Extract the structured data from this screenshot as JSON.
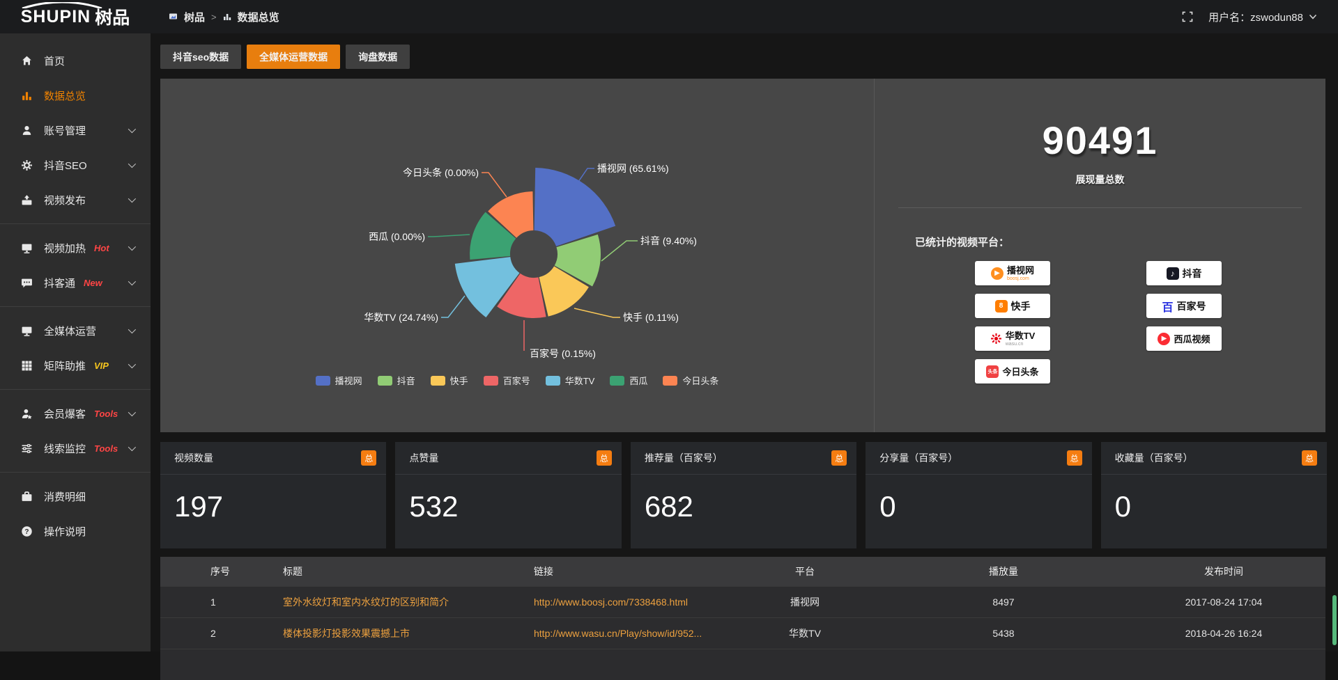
{
  "colors": {
    "accent": "#e87e0e",
    "badge_orange": "#f57d11",
    "link_orange": "#eda13f",
    "badge_red": "#ff4545",
    "badge_vip": "#f5c51e"
  },
  "topbar": {
    "logo_text": "SHUPIN",
    "logo_suffix": "树品",
    "breadcrumb_home": "树品",
    "breadcrumb_sep": ">",
    "breadcrumb_current": "数据总览",
    "username": "用户名：zswodun88"
  },
  "sidebar": {
    "items": [
      {
        "label": "首页",
        "icon": "home"
      },
      {
        "label": "数据总览",
        "icon": "bar-chart",
        "active": true
      },
      {
        "label": "账号管理",
        "icon": "user",
        "expandable": true
      },
      {
        "label": "抖音SEO",
        "icon": "gear",
        "expandable": true
      },
      {
        "label": "视频发布",
        "icon": "video",
        "expandable": true
      },
      {
        "divider": true
      },
      {
        "label": "视频加热",
        "icon": "heat",
        "badge": "Hot",
        "badge_style": "red",
        "expandable": true
      },
      {
        "label": "抖客通",
        "icon": "chat",
        "badge": "New",
        "badge_style": "red",
        "expandable": true
      },
      {
        "divider": true
      },
      {
        "label": "全媒体运营",
        "icon": "monitor",
        "expandable": true
      },
      {
        "label": "矩阵助推",
        "icon": "grid",
        "badge": "VIP",
        "badge_style": "vip",
        "expandable": true
      },
      {
        "divider": true
      },
      {
        "label": "会员爆客",
        "icon": "member",
        "badge": "Tools",
        "badge_style": "red",
        "expandable": true
      },
      {
        "label": "线索监控",
        "icon": "sliders",
        "badge": "Tools",
        "badge_style": "red",
        "expandable": true
      },
      {
        "divider": true
      },
      {
        "label": "消费明细",
        "icon": "wallet"
      },
      {
        "label": "操作说明",
        "icon": "question"
      }
    ]
  },
  "tabs": {
    "items": [
      "抖音seo数据",
      "全媒体运营数据",
      "询盘数据"
    ],
    "active_index": 1
  },
  "chart_data": {
    "type": "pie",
    "variant": "nightingale-rose",
    "categories": [
      "播视网",
      "抖音",
      "快手",
      "百家号",
      "华数TV",
      "西瓜",
      "今日头条"
    ],
    "values": [
      65.61,
      9.4,
      0.11,
      0.15,
      24.74,
      0.0,
      0.0
    ],
    "unit": "%",
    "colors": [
      "#5470c6",
      "#91cc75",
      "#fac858",
      "#ee6666",
      "#73c0de",
      "#3ba272",
      "#fc8452"
    ],
    "legend": [
      "播视网",
      "抖音",
      "快手",
      "百家号",
      "华数TV",
      "西瓜",
      "今日头条"
    ],
    "legend_position": "bottom",
    "label_format": "{name} ({value}%)"
  },
  "summary": {
    "total_value": "90491",
    "total_label": "展现量总数",
    "platforms_title": "已统计的视频平台：",
    "platforms_left": [
      {
        "name": "播视网",
        "sub": "boosj.com",
        "logo": "boosj"
      },
      {
        "name": "快手",
        "logo": "kuaishou"
      },
      {
        "name": "华数TV",
        "sub": "wasu.cn",
        "logo": "wasu"
      },
      {
        "name": "今日头条",
        "logo": "toutiao"
      }
    ],
    "platforms_right": [
      {
        "name": "抖音",
        "logo": "douyin"
      },
      {
        "name": "百家号",
        "logo": "baijia"
      },
      {
        "name": "西瓜视频",
        "logo": "xigua"
      }
    ]
  },
  "stats": [
    {
      "label": "视频数量",
      "badge": "总",
      "value": "197"
    },
    {
      "label": "点赞量",
      "badge": "总",
      "value": "532"
    },
    {
      "label": "推荐量（百家号）",
      "badge": "总",
      "value": "682"
    },
    {
      "label": "分享量（百家号）",
      "badge": "总",
      "value": "0"
    },
    {
      "label": "收藏量（百家号）",
      "badge": "总",
      "value": "0"
    }
  ],
  "table": {
    "columns": [
      "序号",
      "标题",
      "链接",
      "平台",
      "播放量",
      "发布时间"
    ],
    "rows": [
      {
        "no": "1",
        "title": "室外水纹灯和室内水纹灯的区别和简介",
        "link": "http://www.boosj.com/7338468.html",
        "platform": "播视网",
        "views": "8497",
        "published": "2017-08-24 17:04"
      },
      {
        "no": "2",
        "title": "楼体投影灯投影效果震撼上市",
        "link": "http://www.wasu.cn/Play/show/id/952...",
        "platform": "华数TV",
        "views": "5438",
        "published": "2018-04-26 16:24"
      }
    ]
  }
}
